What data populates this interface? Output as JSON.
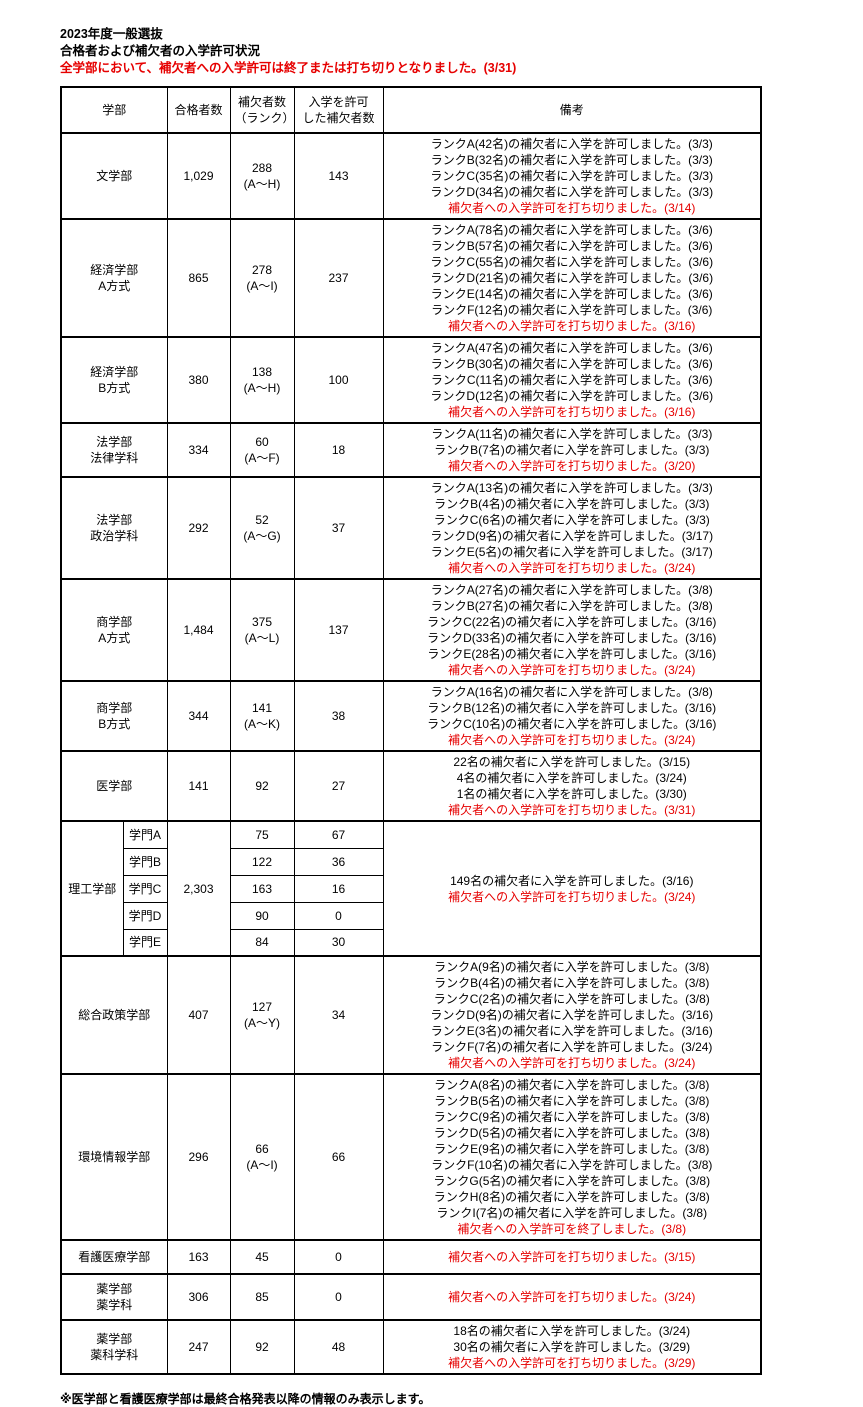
{
  "header": {
    "title_line1": "2023年度一般選抜",
    "title_line2": "合格者および補欠者の入学許可状況",
    "alert": "全学部において、補欠者への入学許可は終了または打ち切りとなりました。(3/31)"
  },
  "colors": {
    "alert_red": "#e60000",
    "remark_red": "#e60000",
    "text": "#000000",
    "border": "#000000",
    "background": "#ffffff"
  },
  "table": {
    "columns": {
      "faculty": "学部",
      "admitted": "合格者数",
      "waitlist": "補欠者数\n（ランク）",
      "waitlist_admitted": "入学を許可\nした補欠者数",
      "remarks": "備考"
    },
    "rows": [
      {
        "name": "文学部",
        "admitted": "1,029",
        "waitlist": "288\n(A～H)",
        "waitlist_admitted": "143",
        "remarks": [
          {
            "text": "ランクA(42名)の補欠者に入学を許可しました。(3/3)",
            "red": false
          },
          {
            "text": "ランクB(32名)の補欠者に入学を許可しました。(3/3)",
            "red": false
          },
          {
            "text": "ランクC(35名)の補欠者に入学を許可しました。(3/3)",
            "red": false
          },
          {
            "text": "ランクD(34名)の補欠者に入学を許可しました。(3/3)",
            "red": false
          },
          {
            "text": "補欠者への入学許可を打ち切りました。(3/14)",
            "red": true
          }
        ]
      },
      {
        "name": "経済学部\nA方式",
        "admitted": "865",
        "waitlist": "278\n(A～I)",
        "waitlist_admitted": "237",
        "remarks": [
          {
            "text": "ランクA(78名)の補欠者に入学を許可しました。(3/6)",
            "red": false
          },
          {
            "text": "ランクB(57名)の補欠者に入学を許可しました。(3/6)",
            "red": false
          },
          {
            "text": "ランクC(55名)の補欠者に入学を許可しました。(3/6)",
            "red": false
          },
          {
            "text": "ランクD(21名)の補欠者に入学を許可しました。(3/6)",
            "red": false
          },
          {
            "text": "ランクE(14名)の補欠者に入学を許可しました。(3/6)",
            "red": false
          },
          {
            "text": "ランクF(12名)の補欠者に入学を許可しました。(3/6)",
            "red": false
          },
          {
            "text": "補欠者への入学許可を打ち切りました。(3/16)",
            "red": true
          }
        ]
      },
      {
        "name": "経済学部\nB方式",
        "admitted": "380",
        "waitlist": "138\n(A～H)",
        "waitlist_admitted": "100",
        "remarks": [
          {
            "text": "ランクA(47名)の補欠者に入学を許可しました。(3/6)",
            "red": false
          },
          {
            "text": "ランクB(30名)の補欠者に入学を許可しました。(3/6)",
            "red": false
          },
          {
            "text": "ランクC(11名)の補欠者に入学を許可しました。(3/6)",
            "red": false
          },
          {
            "text": "ランクD(12名)の補欠者に入学を許可しました。(3/6)",
            "red": false
          },
          {
            "text": "補欠者への入学許可を打ち切りました。(3/16)",
            "red": true
          }
        ]
      },
      {
        "name": "法学部\n法律学科",
        "admitted": "334",
        "waitlist": "60\n(A～F)",
        "waitlist_admitted": "18",
        "remarks": [
          {
            "text": "ランクA(11名)の補欠者に入学を許可しました。(3/3)",
            "red": false
          },
          {
            "text": "ランクB(7名)の補欠者に入学を許可しました。(3/3)",
            "red": false
          },
          {
            "text": "補欠者への入学許可を打ち切りました。(3/20)",
            "red": true
          }
        ]
      },
      {
        "name": "法学部\n政治学科",
        "admitted": "292",
        "waitlist": "52\n(A～G)",
        "waitlist_admitted": "37",
        "remarks": [
          {
            "text": "ランクA(13名)の補欠者に入学を許可しました。(3/3)",
            "red": false
          },
          {
            "text": "ランクB(4名)の補欠者に入学を許可しました。(3/3)",
            "red": false
          },
          {
            "text": "ランクC(6名)の補欠者に入学を許可しました。(3/3)",
            "red": false
          },
          {
            "text": "ランクD(9名)の補欠者に入学を許可しました。(3/17)",
            "red": false
          },
          {
            "text": "ランクE(5名)の補欠者に入学を許可しました。(3/17)",
            "red": false
          },
          {
            "text": "補欠者への入学許可を打ち切りました。(3/24)",
            "red": true
          }
        ]
      },
      {
        "name": "商学部\nA方式",
        "admitted": "1,484",
        "waitlist": "375\n(A～L)",
        "waitlist_admitted": "137",
        "remarks": [
          {
            "text": "ランクA(27名)の補欠者に入学を許可しました。(3/8)",
            "red": false
          },
          {
            "text": "ランクB(27名)の補欠者に入学を許可しました。(3/8)",
            "red": false
          },
          {
            "text": "ランクC(22名)の補欠者に入学を許可しました。(3/16)",
            "red": false
          },
          {
            "text": "ランクD(33名)の補欠者に入学を許可しました。(3/16)",
            "red": false
          },
          {
            "text": "ランクE(28名)の補欠者に入学を許可しました。(3/16)",
            "red": false
          },
          {
            "text": "補欠者への入学許可を打ち切りました。(3/24)",
            "red": true
          }
        ]
      },
      {
        "name": "商学部\nB方式",
        "admitted": "344",
        "waitlist": "141\n(A～K)",
        "waitlist_admitted": "38",
        "remarks": [
          {
            "text": "ランクA(16名)の補欠者に入学を許可しました。(3/8)",
            "red": false
          },
          {
            "text": "ランクB(12名)の補欠者に入学を許可しました。(3/16)",
            "red": false
          },
          {
            "text": "ランクC(10名)の補欠者に入学を許可しました。(3/16)",
            "red": false
          },
          {
            "text": "補欠者への入学許可を打ち切りました。(3/24)",
            "red": true
          }
        ]
      },
      {
        "name": "医学部",
        "admitted": "141",
        "waitlist": "92",
        "waitlist_admitted": "27",
        "remarks": [
          {
            "text": "22名の補欠者に入学を許可しました。(3/15)",
            "red": false
          },
          {
            "text": "4名の補欠者に入学を許可しました。(3/24)",
            "red": false
          },
          {
            "text": "1名の補欠者に入学を許可しました。(3/30)",
            "red": false
          },
          {
            "text": "補欠者への入学許可を打ち切りました。(3/31)",
            "red": true
          }
        ]
      },
      {
        "name": "理工学部",
        "admitted": "2,303",
        "subrows": [
          {
            "label": "学門A",
            "waitlist": "75",
            "waitlist_admitted": "67"
          },
          {
            "label": "学門B",
            "waitlist": "122",
            "waitlist_admitted": "36"
          },
          {
            "label": "学門C",
            "waitlist": "163",
            "waitlist_admitted": "16"
          },
          {
            "label": "学門D",
            "waitlist": "90",
            "waitlist_admitted": "0"
          },
          {
            "label": "学門E",
            "waitlist": "84",
            "waitlist_admitted": "30"
          }
        ],
        "remarks": [
          {
            "text": "149名の補欠者に入学を許可しました。(3/16)",
            "red": false
          },
          {
            "text": "補欠者への入学許可を打ち切りました。(3/24)",
            "red": true
          }
        ]
      },
      {
        "name": "総合政策学部",
        "admitted": "407",
        "waitlist": "127\n(A～Y)",
        "waitlist_admitted": "34",
        "remarks": [
          {
            "text": "ランクA(9名)の補欠者に入学を許可しました。(3/8)",
            "red": false
          },
          {
            "text": "ランクB(4名)の補欠者に入学を許可しました。(3/8)",
            "red": false
          },
          {
            "text": "ランクC(2名)の補欠者に入学を許可しました。(3/8)",
            "red": false
          },
          {
            "text": "ランクD(9名)の補欠者に入学を許可しました。(3/16)",
            "red": false
          },
          {
            "text": "ランクE(3名)の補欠者に入学を許可しました。(3/16)",
            "red": false
          },
          {
            "text": "ランクF(7名)の補欠者に入学を許可しました。(3/24)",
            "red": false
          },
          {
            "text": "補欠者への入学許可を打ち切りました。(3/24)",
            "red": true
          }
        ]
      },
      {
        "name": "環境情報学部",
        "admitted": "296",
        "waitlist": "66\n(A～I)",
        "waitlist_admitted": "66",
        "remarks": [
          {
            "text": "ランクA(8名)の補欠者に入学を許可しました。(3/8)",
            "red": false
          },
          {
            "text": "ランクB(5名)の補欠者に入学を許可しました。(3/8)",
            "red": false
          },
          {
            "text": "ランクC(9名)の補欠者に入学を許可しました。(3/8)",
            "red": false
          },
          {
            "text": "ランクD(5名)の補欠者に入学を許可しました。(3/8)",
            "red": false
          },
          {
            "text": "ランクE(9名)の補欠者に入学を許可しました。(3/8)",
            "red": false
          },
          {
            "text": "ランクF(10名)の補欠者に入学を許可しました。(3/8)",
            "red": false
          },
          {
            "text": "ランクG(5名)の補欠者に入学を許可しました。(3/8)",
            "red": false
          },
          {
            "text": "ランクH(8名)の補欠者に入学を許可しました。(3/8)",
            "red": false
          },
          {
            "text": "ランクI(7名)の補欠者に入学を許可しました。(3/8)",
            "red": false
          },
          {
            "text": "補欠者への入学許可を終了しました。(3/8)",
            "red": true
          }
        ]
      },
      {
        "name": "看護医療学部",
        "admitted": "163",
        "waitlist": "45",
        "waitlist_admitted": "0",
        "height_class": "short",
        "remarks": [
          {
            "text": "補欠者への入学許可を打ち切りました。(3/15)",
            "red": true
          }
        ]
      },
      {
        "name": "薬学部\n薬学科",
        "admitted": "306",
        "waitlist": "85",
        "waitlist_admitted": "0",
        "height_class": "short2",
        "remarks": [
          {
            "text": "補欠者への入学許可を打ち切りました。(3/24)",
            "red": true
          }
        ]
      },
      {
        "name": "薬学部\n薬科学科",
        "admitted": "247",
        "waitlist": "92",
        "waitlist_admitted": "48",
        "remarks": [
          {
            "text": "18名の補欠者に入学を許可しました。(3/24)",
            "red": false
          },
          {
            "text": "30名の補欠者に入学を許可しました。(3/29)",
            "red": false
          },
          {
            "text": "補欠者への入学許可を打ち切りました。(3/29)",
            "red": true
          }
        ]
      }
    ]
  },
  "footnote": "※医学部と看護医療学部は最終合格発表以降の情報のみ表示します。"
}
